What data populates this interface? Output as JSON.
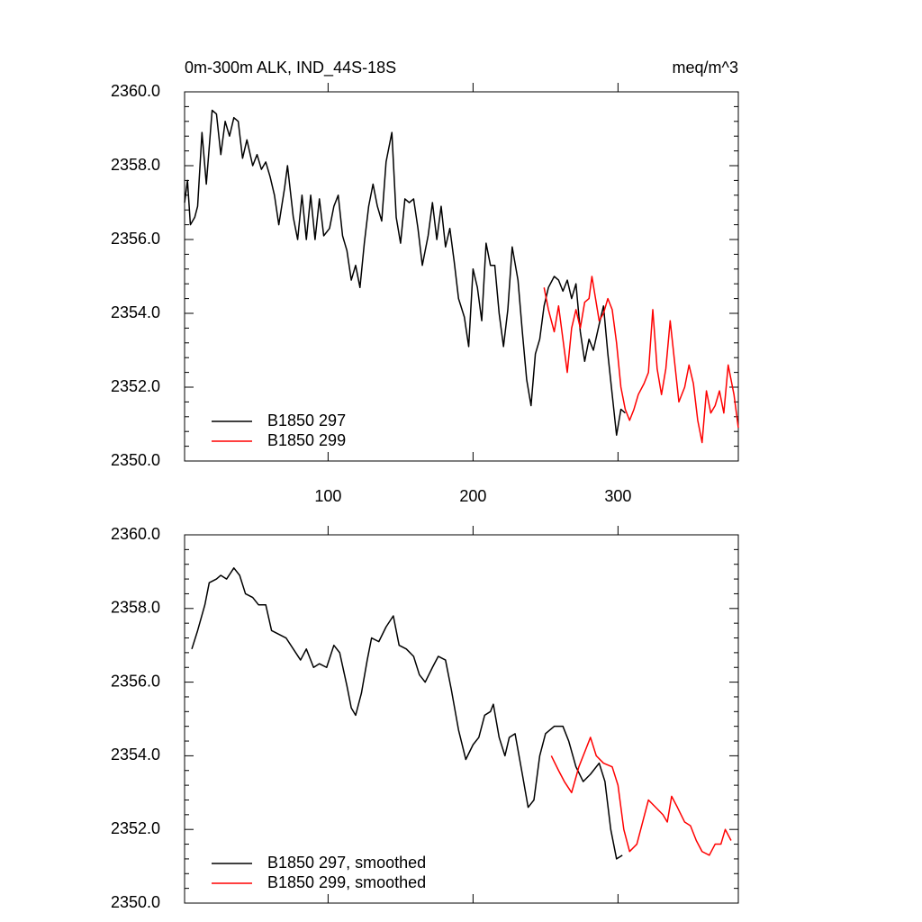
{
  "chart_data": [
    {
      "type": "line",
      "title": "0m-300m ALK, IND_44S-18S",
      "units": "meq/m^3",
      "xlim": [
        1,
        383
      ],
      "xticks": [
        100,
        200,
        300
      ],
      "show_xtick_labels": true,
      "ylim": [
        2350,
        2360
      ],
      "yticks": [
        {
          "value": 2350,
          "label": "2350.0"
        },
        {
          "value": 2352,
          "label": "2352.0"
        },
        {
          "value": 2354,
          "label": "2354.0"
        },
        {
          "value": 2356,
          "label": "2356.0"
        },
        {
          "value": 2358,
          "label": "2358.0"
        },
        {
          "value": 2360,
          "label": "2360.0"
        }
      ],
      "legend": "lower left",
      "series": [
        {
          "name": "B1850 297",
          "color": "#000000",
          "x": [
            1,
            3,
            5,
            8,
            10,
            13,
            16,
            20,
            23,
            26,
            29,
            32,
            35,
            38,
            41,
            44,
            48,
            51,
            54,
            57,
            60,
            63,
            66,
            70,
            72,
            76,
            79,
            82,
            85,
            88,
            91,
            94,
            97,
            101,
            104,
            107,
            110,
            113,
            116,
            119,
            122,
            125,
            128,
            131,
            134,
            137,
            140,
            144,
            147,
            150,
            153,
            156,
            159,
            162,
            165,
            169,
            172,
            175,
            178,
            181,
            184,
            187,
            190,
            194,
            197,
            200,
            203,
            206,
            209,
            212,
            215,
            218,
            221,
            224,
            227,
            231,
            234,
            237,
            240,
            243,
            246,
            249,
            252,
            256,
            259,
            262,
            265,
            268,
            271,
            274,
            277,
            280,
            283,
            287,
            290,
            293,
            296,
            299,
            302,
            305
          ],
          "values": [
            2357.0,
            2357.6,
            2356.4,
            2356.6,
            2356.9,
            2358.9,
            2357.5,
            2359.5,
            2359.4,
            2358.3,
            2359.2,
            2358.8,
            2359.3,
            2359.2,
            2358.2,
            2358.7,
            2358.0,
            2358.3,
            2357.9,
            2358.1,
            2357.7,
            2357.2,
            2356.4,
            2357.4,
            2358.0,
            2356.6,
            2356.0,
            2357.2,
            2356.0,
            2357.2,
            2356.0,
            2357.1,
            2356.1,
            2356.3,
            2356.9,
            2357.2,
            2356.1,
            2355.7,
            2354.9,
            2355.3,
            2354.7,
            2355.9,
            2356.9,
            2357.5,
            2356.9,
            2356.5,
            2358.1,
            2358.9,
            2356.6,
            2355.9,
            2357.1,
            2357.0,
            2357.1,
            2356.3,
            2355.3,
            2356.1,
            2357.0,
            2356.0,
            2356.9,
            2355.8,
            2356.3,
            2355.4,
            2354.4,
            2353.9,
            2353.1,
            2355.2,
            2354.7,
            2353.8,
            2355.9,
            2355.3,
            2355.3,
            2354.0,
            2353.1,
            2354.1,
            2355.8,
            2354.9,
            2353.5,
            2352.2,
            2351.5,
            2352.9,
            2353.3,
            2354.2,
            2354.7,
            2355.0,
            2354.9,
            2354.6,
            2354.9,
            2354.4,
            2354.8,
            2353.5,
            2352.7,
            2353.3,
            2353.0,
            2353.7,
            2354.2,
            2352.9,
            2351.8,
            2350.7,
            2351.4,
            2351.3
          ]
        },
        {
          "name": "B1850 299",
          "color": "#ff0000",
          "x": [
            249,
            252,
            256,
            259,
            262,
            265,
            268,
            271,
            274,
            277,
            280,
            282,
            287,
            290,
            293,
            296,
            299,
            302,
            305,
            308,
            311,
            314,
            318,
            321,
            324,
            327,
            330,
            333,
            336,
            339,
            342,
            346,
            349,
            352,
            355,
            358,
            361,
            364,
            367,
            370,
            373,
            376,
            380,
            383
          ],
          "values": [
            2354.7,
            2354.1,
            2353.5,
            2354.2,
            2353.3,
            2352.4,
            2353.6,
            2354.1,
            2353.6,
            2354.3,
            2354.4,
            2355.0,
            2353.8,
            2354.0,
            2354.4,
            2354.1,
            2353.2,
            2352.0,
            2351.4,
            2351.1,
            2351.4,
            2351.8,
            2352.1,
            2352.4,
            2354.1,
            2352.5,
            2351.8,
            2352.5,
            2353.8,
            2352.7,
            2351.6,
            2352.0,
            2352.6,
            2352.1,
            2351.1,
            2350.5,
            2351.9,
            2351.3,
            2351.5,
            2351.9,
            2351.3,
            2352.6,
            2351.8,
            2350.9
          ]
        }
      ]
    },
    {
      "type": "line",
      "xlim": [
        1,
        383
      ],
      "xticks": [
        100,
        200,
        300
      ],
      "show_xtick_labels": false,
      "ylim": [
        2350,
        2360
      ],
      "yticks": [
        {
          "value": 2350,
          "label": "2350.0"
        },
        {
          "value": 2352,
          "label": "2352.0"
        },
        {
          "value": 2354,
          "label": "2354.0"
        },
        {
          "value": 2356,
          "label": "2356.0"
        },
        {
          "value": 2358,
          "label": "2358.0"
        },
        {
          "value": 2360,
          "label": "2360.0"
        }
      ],
      "legend": "lower left",
      "series": [
        {
          "name": "B1850 297, smoothed",
          "color": "#000000",
          "x": [
            6,
            10,
            15,
            18,
            23,
            26,
            30,
            35,
            39,
            43,
            48,
            52,
            57,
            61,
            66,
            71,
            76,
            81,
            85,
            90,
            94,
            99,
            104,
            108,
            113,
            116,
            119,
            123,
            127,
            130,
            135,
            140,
            145,
            149,
            154,
            159,
            163,
            167,
            172,
            176,
            181,
            185,
            190,
            195,
            200,
            204,
            208,
            212,
            214,
            218,
            222,
            225,
            229,
            234,
            238,
            242,
            246,
            250,
            256,
            262,
            266,
            271,
            276,
            281,
            287,
            291,
            295,
            299,
            303
          ],
          "values": [
            2356.9,
            2357.4,
            2358.1,
            2358.7,
            2358.8,
            2358.9,
            2358.8,
            2359.1,
            2358.9,
            2358.4,
            2358.3,
            2358.1,
            2358.1,
            2357.4,
            2357.3,
            2357.2,
            2356.9,
            2356.6,
            2356.9,
            2356.4,
            2356.5,
            2356.4,
            2357.0,
            2356.8,
            2355.9,
            2355.3,
            2355.1,
            2355.7,
            2356.6,
            2357.2,
            2357.1,
            2357.5,
            2357.8,
            2357.0,
            2356.9,
            2356.7,
            2356.2,
            2356.0,
            2356.4,
            2356.7,
            2356.6,
            2355.8,
            2354.7,
            2353.9,
            2354.3,
            2354.5,
            2355.1,
            2355.2,
            2355.4,
            2354.5,
            2354.0,
            2354.5,
            2354.6,
            2353.5,
            2352.6,
            2352.8,
            2354.0,
            2354.6,
            2354.8,
            2354.8,
            2354.4,
            2353.7,
            2353.3,
            2353.5,
            2353.8,
            2353.3,
            2352.0,
            2351.2,
            2351.3
          ]
        },
        {
          "name": "B1850 299, smoothed",
          "color": "#ff0000",
          "x": [
            254,
            259,
            263,
            268,
            273,
            278,
            281,
            285,
            290,
            296,
            300,
            304,
            308,
            313,
            317,
            321,
            326,
            331,
            334,
            337,
            341,
            346,
            350,
            354,
            358,
            363,
            367,
            371,
            374,
            378
          ],
          "values": [
            2354.0,
            2353.6,
            2353.3,
            2353.0,
            2353.7,
            2354.2,
            2354.5,
            2354.0,
            2353.8,
            2353.7,
            2353.2,
            2352.0,
            2351.4,
            2351.6,
            2352.2,
            2352.8,
            2352.6,
            2352.4,
            2352.2,
            2352.9,
            2352.6,
            2352.2,
            2352.1,
            2351.7,
            2351.4,
            2351.3,
            2351.6,
            2351.6,
            2352.0,
            2351.7
          ]
        }
      ]
    }
  ]
}
